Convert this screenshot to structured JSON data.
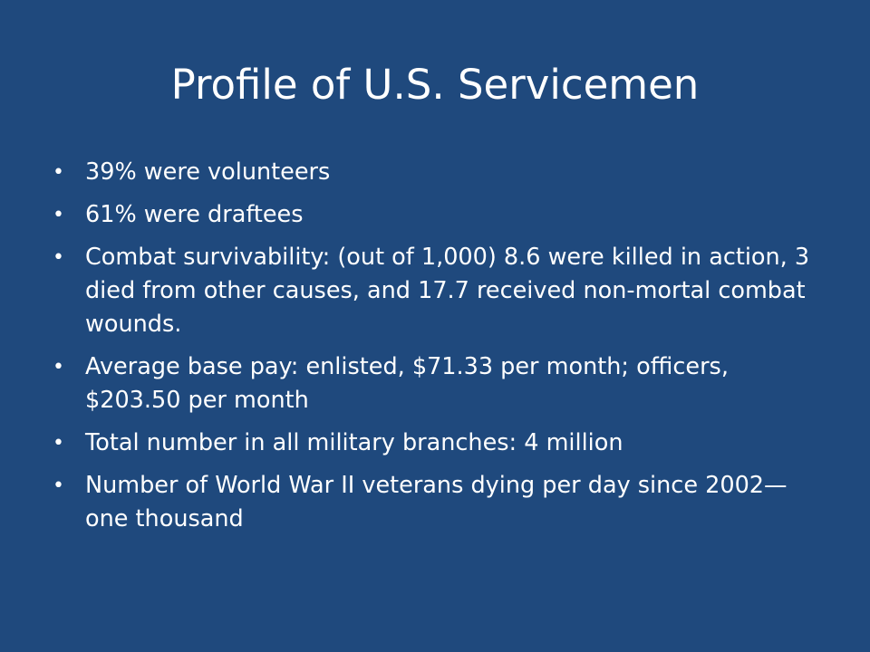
{
  "slide": {
    "title": "Profile of U.S. Servicemen",
    "bullet_glyph": "•",
    "items": [
      "39% were volunteers",
      "61% were draftees",
      "Combat survivability:  (out of 1,000) 8.6 were killed in action, 3 died from other causes, and 17.7 received non-mortal combat wounds.",
      "Average base pay: enlisted, $71.33 per month; officers, $203.50 per month",
      "Total number in all military branches: 4 million",
      "Number of World War II veterans dying per day since 2002—one thousand"
    ]
  },
  "colors": {
    "background": "#1f497d",
    "text": "#ffffff"
  }
}
